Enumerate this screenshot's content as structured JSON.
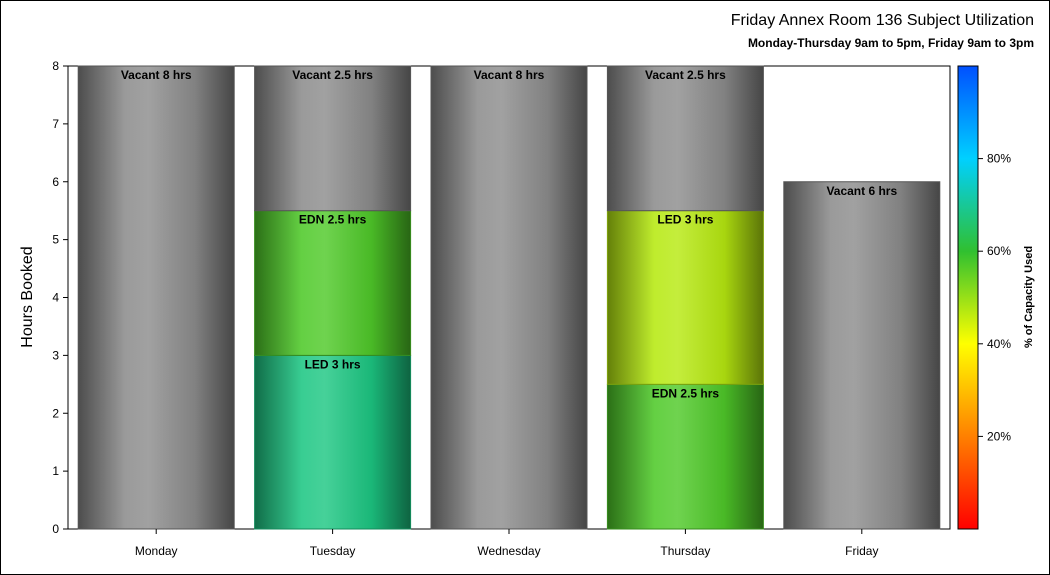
{
  "chart_data": {
    "type": "bar",
    "stacked": true,
    "title": "Friday Annex Room 136 Subject Utilization",
    "subtitle": "Monday-Thursday 9am to 5pm, Friday 9am to 3pm",
    "ylabel": "Hours Booked",
    "xlabel": "",
    "ylim": [
      0,
      8
    ],
    "yticks": [
      "0",
      "1",
      "2",
      "3",
      "4",
      "5",
      "6",
      "7",
      "8"
    ],
    "categories": [
      "Monday",
      "Tuesday",
      "Wednesday",
      "Thursday",
      "Friday"
    ],
    "bars": [
      {
        "category": "Monday",
        "segments": [
          {
            "value": 8,
            "kind": "vacant",
            "label": "Vacant 8 hrs"
          }
        ]
      },
      {
        "category": "Tuesday",
        "segments": [
          {
            "value": 3,
            "kind": "booked",
            "capacity_pct": 68,
            "label": "LED 3 hrs"
          },
          {
            "value": 2.5,
            "kind": "booked",
            "capacity_pct": 57,
            "label": "EDN 2.5 hrs"
          },
          {
            "value": 2.5,
            "kind": "vacant",
            "label": "Vacant 2.5 hrs"
          }
        ]
      },
      {
        "category": "Wednesday",
        "segments": [
          {
            "value": 8,
            "kind": "vacant",
            "label": "Vacant 8 hrs"
          }
        ]
      },
      {
        "category": "Thursday",
        "segments": [
          {
            "value": 2.5,
            "kind": "booked",
            "capacity_pct": 57,
            "label": "EDN 2.5 hrs"
          },
          {
            "value": 3,
            "kind": "booked",
            "capacity_pct": 47,
            "label": "LED 3 hrs"
          },
          {
            "value": 2.5,
            "kind": "vacant",
            "label": "Vacant 2.5 hrs"
          }
        ]
      },
      {
        "category": "Friday",
        "segments": [
          {
            "value": 6,
            "kind": "vacant",
            "label": "Vacant 6 hrs"
          }
        ]
      }
    ],
    "colorbar": {
      "title": "% of Capacity Used",
      "range": [
        0,
        100
      ],
      "ticks": [
        "20%",
        "40%",
        "60%",
        "80%"
      ],
      "tick_values": [
        20,
        40,
        60,
        80
      ],
      "stops": [
        "#ff0000",
        "#ff8000",
        "#ffff00",
        "#30c030",
        "#00d0ff",
        "#0050ff"
      ]
    },
    "grid": false,
    "legend": "right"
  }
}
